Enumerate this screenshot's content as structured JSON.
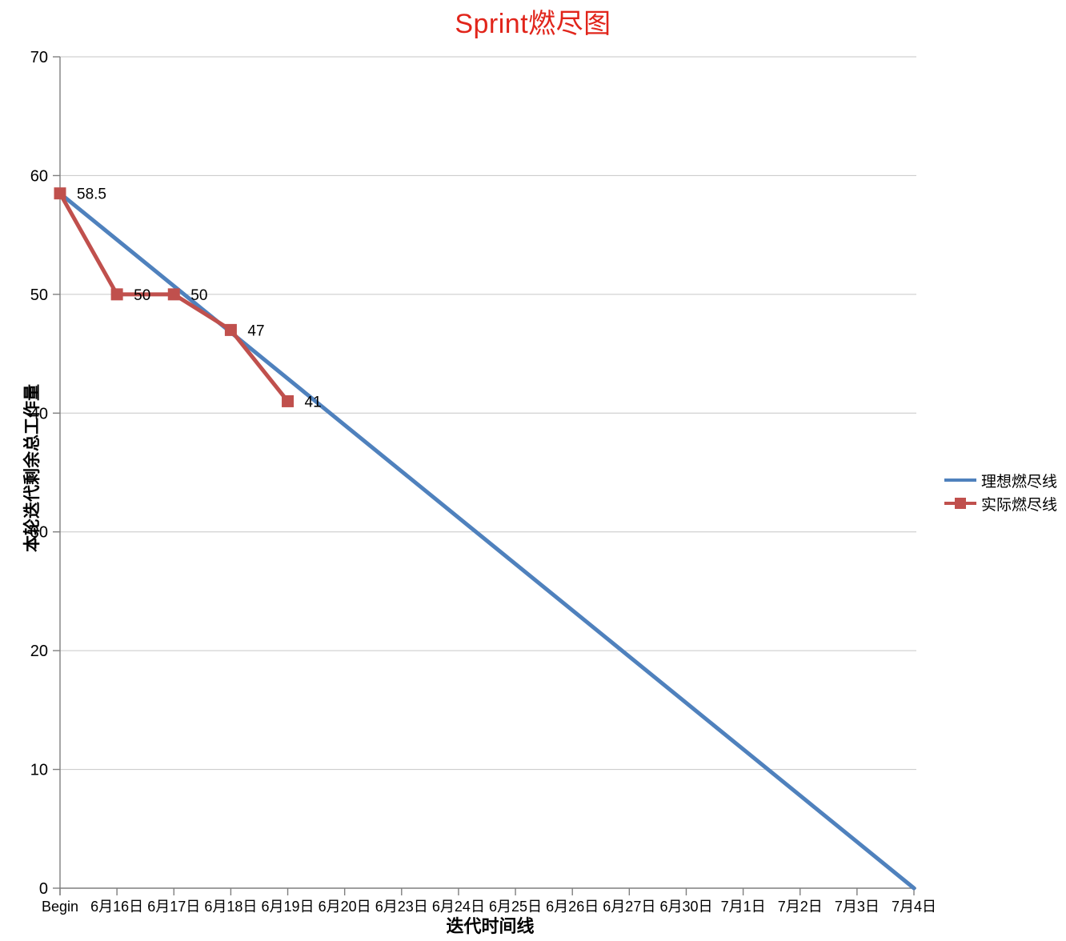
{
  "colors": {
    "title": "#e1251b",
    "ideal_line": "#4f81bd",
    "actual_line": "#c0504d",
    "gridline": "#c6c6c6",
    "axis": "#7f7f7f",
    "tick_text": "#000000"
  },
  "chart_data": {
    "type": "line",
    "title": "Sprint燃尽图",
    "xlabel": "迭代时间线",
    "ylabel": "本轮迭代剩余总工作量",
    "categories": [
      "Begin",
      "6月16日",
      "6月17日",
      "6月18日",
      "6月19日",
      "6月20日",
      "6月23日",
      "6月24日",
      "6月25日",
      "6月26日",
      "6月27日",
      "6月30日",
      "7月1日",
      "7月2日",
      "7月3日",
      "7月4日"
    ],
    "series": [
      {
        "name": "理想燃尽线",
        "color": "#4f81bd",
        "markers": false,
        "values": [
          58.5,
          54.6,
          50.7,
          46.8,
          42.9,
          39.0,
          35.1,
          31.2,
          27.3,
          23.4,
          19.5,
          15.6,
          11.7,
          7.8,
          3.9,
          0
        ]
      },
      {
        "name": "实际燃尽线",
        "color": "#c0504d",
        "markers": true,
        "values": [
          58.5,
          50,
          50,
          47,
          41,
          null,
          null,
          null,
          null,
          null,
          null,
          null,
          null,
          null,
          null,
          null
        ],
        "data_labels": [
          "58.5",
          "50",
          "50",
          "47",
          "41"
        ]
      }
    ],
    "ylim": [
      0,
      70
    ],
    "y_ticks": [
      0,
      10,
      20,
      30,
      40,
      50,
      60,
      70
    ],
    "grid": true,
    "legend_position": "right"
  }
}
